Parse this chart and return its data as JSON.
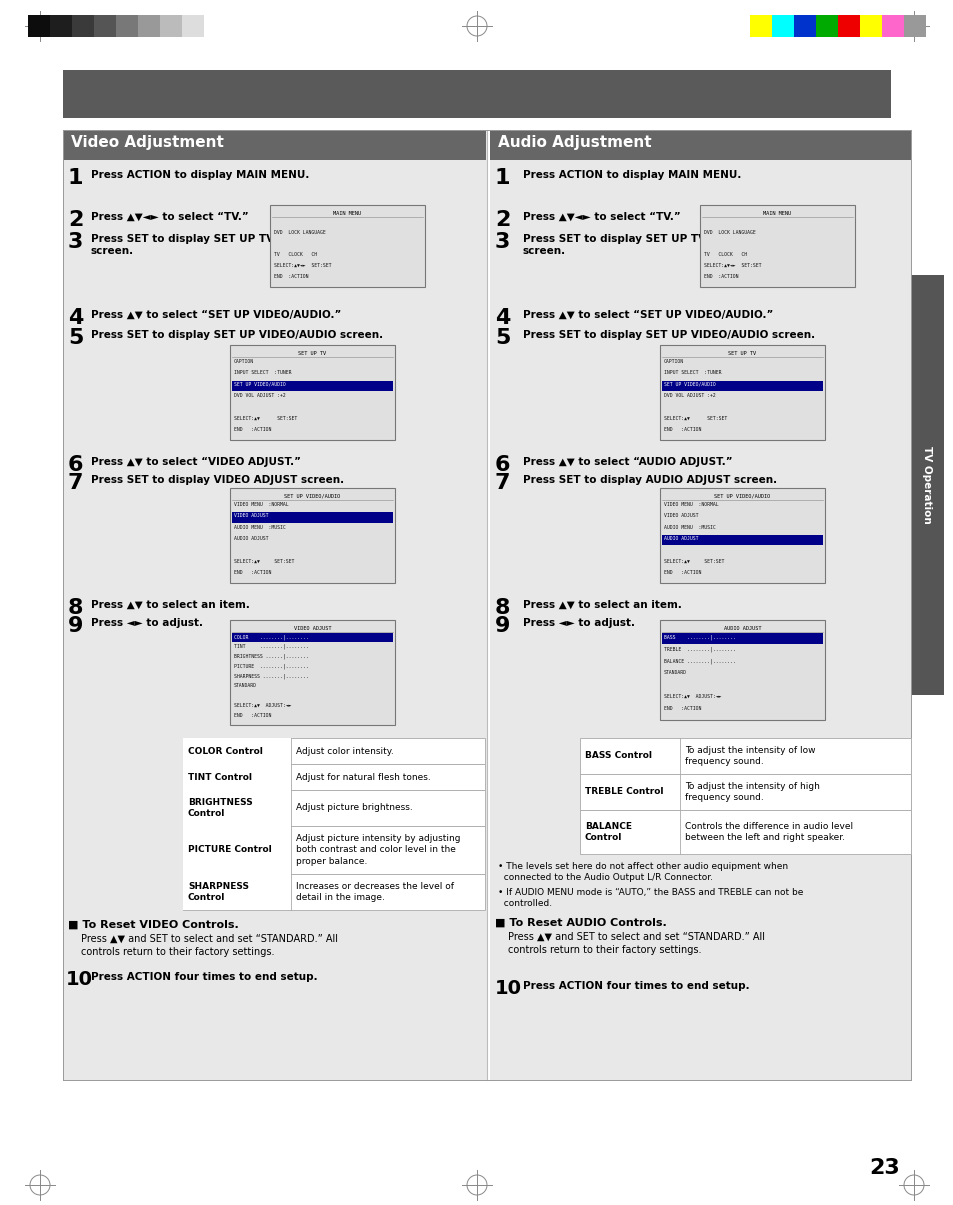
{
  "page_bg": "#ffffff",
  "header_bar_color": "#5a5a5a",
  "section_header_color": "#666666",
  "light_gray_col": "#e8e8e8",
  "sidebar_color": "#555555",
  "table_border": "#aaaaaa",
  "screen_bg": "#e8e8e8",
  "screen_border": "#888888",
  "highlight_bg": "#000066",
  "color_bars_left": [
    "#0d0d0d",
    "#1e1e1e",
    "#3a3a3a",
    "#555555",
    "#787878",
    "#999999",
    "#bbbbbb",
    "#dddddd"
  ],
  "color_bars_right": [
    "#ffff00",
    "#00ffff",
    "#0033cc",
    "#00aa00",
    "#ee0000",
    "#ffff00",
    "#ff66cc",
    "#999999"
  ],
  "video_title": "Video Adjustment",
  "audio_title": "Audio Adjustment",
  "sidebar_label": "TV Operation",
  "page_number": "23",
  "video_table": [
    {
      "term": "COLOR Control",
      "def": "Adjust color intensity.",
      "rows": 1
    },
    {
      "term": "TINT Control",
      "def": "Adjust for natural flesh tones.",
      "rows": 1
    },
    {
      "term": "BRIGHTNESS\nControl",
      "def": "Adjust picture brightness.",
      "rows": 2
    },
    {
      "term": "PICTURE Control",
      "def": "Adjust picture intensity by adjusting\nboth contrast and color level in the\nproper balance.",
      "rows": 3
    },
    {
      "term": "SHARPNESS\nControl",
      "def": "Increases or decreases the level of\ndetail in the image.",
      "rows": 2
    }
  ],
  "audio_table": [
    {
      "term": "BASS Control",
      "def": "To adjust the intensity of low\nfrequency sound.",
      "rows": 2
    },
    {
      "term": "TREBLE Control",
      "def": "To adjust the intensity of high\nfrequency sound.",
      "rows": 2
    },
    {
      "term": "BALANCE\nControl",
      "def": "Controls the difference in audio level\nbetween the left and right speaker.",
      "rows": 2
    }
  ],
  "video_reset_title": "To Reset VIDEO Controls.",
  "video_reset_text": "Press ▲▼ and SET to select and set “STANDARD.” All\ncontrols return to their factory settings.",
  "audio_reset_title": "To Reset AUDIO Controls.",
  "audio_reset_text": "Press ▲▼ and SET to select and set “STANDARD.” All\ncontrols return to their factory settings.",
  "audio_notes": [
    "• The levels set here do not affect other audio equipment when\n  connected to the Audio Output L/R Connector.",
    "• If AUDIO MENU mode is “AUTO,” the BASS and TREBLE can not be\n  controlled."
  ]
}
